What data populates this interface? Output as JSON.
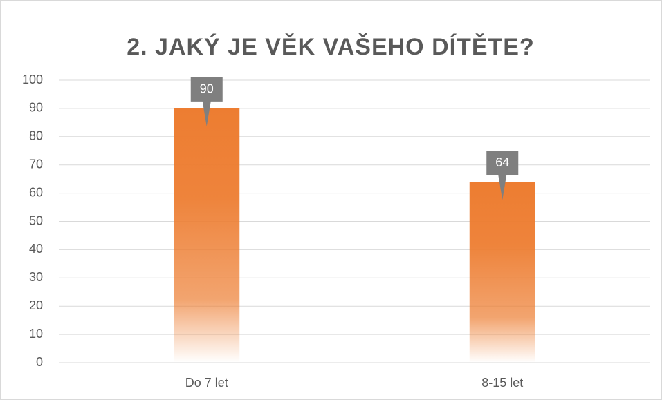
{
  "chart_data": {
    "type": "bar",
    "title": "2. JAKÝ JE VĚK VAŠEHO DÍTĚTE?",
    "categories": [
      "Do 7 let",
      "8-15 let"
    ],
    "values": [
      90,
      64
    ],
    "color": "#ED7D31",
    "ylim": [
      0,
      100
    ],
    "yticks": [
      0,
      10,
      20,
      30,
      40,
      50,
      60,
      70,
      80,
      90,
      100
    ],
    "grid": true
  }
}
